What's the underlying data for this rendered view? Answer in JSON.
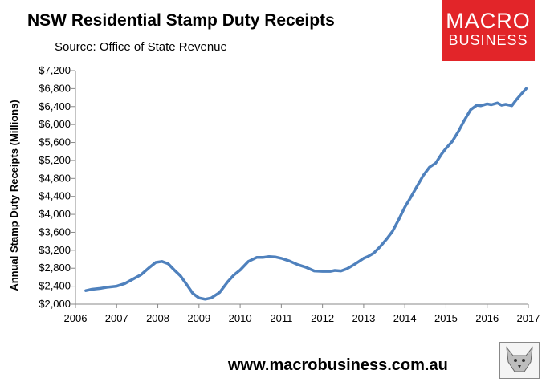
{
  "header": {
    "title": "NSW Residential Stamp Duty Receipts",
    "subtitle": "Source: Office of State Revenue"
  },
  "logo": {
    "line1": "MACRO",
    "line2": "BUSINESS"
  },
  "footer": {
    "url": "www.macrobusiness.com.au",
    "badge_icon": "wolf-icon"
  },
  "chart_data": {
    "type": "line",
    "title": "NSW Residential Stamp Duty Receipts",
    "subtitle": "Source: Office of State Revenue",
    "xlabel": "",
    "ylabel": "Annual Stamp Duty Receipts (Millions)",
    "xlim": [
      2006,
      2017
    ],
    "ylim": [
      2000,
      7200
    ],
    "x_ticks": [
      2006,
      2007,
      2008,
      2009,
      2010,
      2011,
      2012,
      2013,
      2014,
      2015,
      2016,
      2017
    ],
    "y_ticks": [
      2000,
      2400,
      2800,
      3200,
      3600,
      4000,
      4400,
      4800,
      5200,
      5600,
      6000,
      6400,
      6800,
      7200
    ],
    "y_tick_labels": [
      "$2,000",
      "$2,400",
      "$2,800",
      "$3,200",
      "$3,600",
      "$4,000",
      "$4,400",
      "$4,800",
      "$5,200",
      "$5,600",
      "$6,000",
      "$6,400",
      "$6,800",
      "$7,200"
    ],
    "grid": false,
    "line_color": "#4f81bd",
    "series": [
      {
        "x": [
          2006.25,
          2006.4,
          2006.6,
          2006.8,
          2007.0,
          2007.2,
          2007.4,
          2007.6,
          2007.8,
          2007.95,
          2008.1,
          2008.25,
          2008.4,
          2008.55,
          2008.7,
          2008.85,
          2009.0,
          2009.15,
          2009.3,
          2009.5,
          2009.7,
          2009.85,
          2010.0,
          2010.2,
          2010.4,
          2010.55,
          2010.7,
          2010.85,
          2011.0,
          2011.2,
          2011.4,
          2011.6,
          2011.8,
          2012.0,
          2012.2,
          2012.3,
          2012.45,
          2012.6,
          2012.75,
          2012.9,
          2013.0,
          2013.1,
          2013.25,
          2013.4,
          2013.55,
          2013.7,
          2013.85,
          2014.0,
          2014.15,
          2014.3,
          2014.45,
          2014.6,
          2014.75,
          2014.9,
          2015.0,
          2015.15,
          2015.3,
          2015.45,
          2015.6,
          2015.75,
          2015.85,
          2016.0,
          2016.1,
          2016.25,
          2016.35,
          2016.45,
          2016.6,
          2016.7,
          2016.85,
          2016.95
        ],
        "y": [
          2300,
          2330,
          2350,
          2380,
          2400,
          2460,
          2560,
          2660,
          2820,
          2930,
          2950,
          2900,
          2760,
          2630,
          2440,
          2240,
          2140,
          2110,
          2140,
          2260,
          2500,
          2650,
          2760,
          2950,
          3040,
          3040,
          3060,
          3050,
          3020,
          2960,
          2880,
          2820,
          2740,
          2730,
          2730,
          2750,
          2740,
          2790,
          2870,
          2960,
          3020,
          3060,
          3140,
          3280,
          3440,
          3620,
          3880,
          4160,
          4390,
          4630,
          4870,
          5050,
          5140,
          5350,
          5470,
          5620,
          5840,
          6100,
          6330,
          6430,
          6420,
          6460,
          6440,
          6480,
          6430,
          6450,
          6420,
          6540,
          6700,
          6800
        ]
      }
    ]
  }
}
